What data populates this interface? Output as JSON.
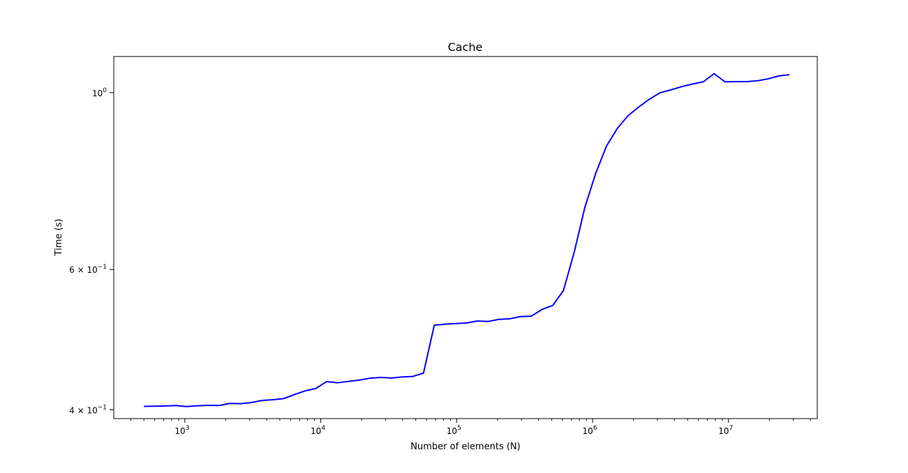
{
  "chart_data": {
    "type": "line",
    "title": "Cache",
    "xlabel": "Number of elements (N)",
    "ylabel": "Time (s)",
    "xscale": "log",
    "yscale": "log",
    "xlim": [
      300,
      45000000
    ],
    "ylim": [
      0.39,
      1.11
    ],
    "grid": false,
    "line_color": "#0000ff",
    "x_ticks": [
      {
        "value": 1000,
        "base": "10",
        "exp": "3"
      },
      {
        "value": 10000,
        "base": "10",
        "exp": "4"
      },
      {
        "value": 100000,
        "base": "10",
        "exp": "5"
      },
      {
        "value": 1000000,
        "base": "10",
        "exp": "6"
      },
      {
        "value": 10000000,
        "base": "10",
        "exp": "7"
      }
    ],
    "y_ticks": [
      {
        "value": 0.4,
        "base": "4 × 10",
        "exp": "−1"
      },
      {
        "value": 0.6,
        "base": "6 × 10",
        "exp": "−1"
      },
      {
        "value": 1.0,
        "base": "10",
        "exp": "0"
      }
    ],
    "series": [
      {
        "name": "Cache",
        "x": [
          500,
          600,
          720,
          860,
          1030,
          1240,
          1490,
          1790,
          2140,
          2570,
          3090,
          3700,
          4440,
          5330,
          6400,
          7680,
          9210,
          11060,
          13270,
          15920,
          19100,
          22920,
          27510,
          33010,
          39610,
          47540,
          57040,
          68450,
          82140,
          98570,
          118280,
          141940,
          170330,
          204390,
          245270,
          294320,
          353190,
          423820,
          508590,
          610310,
          732370,
          878840,
          1054600,
          1265530,
          1518640,
          1822360,
          2186840,
          2624210,
          3149050,
          3778860,
          4534630,
          5441560,
          6529870,
          7835840,
          9403010,
          11283610,
          13540340,
          16248410,
          19498090,
          23397710,
          28077250
        ],
        "values": [
          0.404,
          0.4042,
          0.4045,
          0.405,
          0.4038,
          0.4047,
          0.4052,
          0.405,
          0.4075,
          0.4072,
          0.4085,
          0.411,
          0.4118,
          0.4132,
          0.418,
          0.4225,
          0.4255,
          0.434,
          0.4325,
          0.4342,
          0.4358,
          0.4382,
          0.4392,
          0.4385,
          0.4398,
          0.4405,
          0.4448,
          0.5108,
          0.5123,
          0.5132,
          0.514,
          0.517,
          0.5163,
          0.5195,
          0.5202,
          0.5237,
          0.5242,
          0.5345,
          0.5407,
          0.5645,
          0.6305,
          0.7185,
          0.792,
          0.857,
          0.9015,
          0.9355,
          0.9595,
          0.9815,
          1.0,
          1.0082,
          1.0175,
          1.0253,
          1.0318,
          1.0565,
          1.0318,
          1.0322,
          1.0323,
          1.0348,
          1.0405,
          1.0494,
          1.0532
        ]
      }
    ]
  }
}
